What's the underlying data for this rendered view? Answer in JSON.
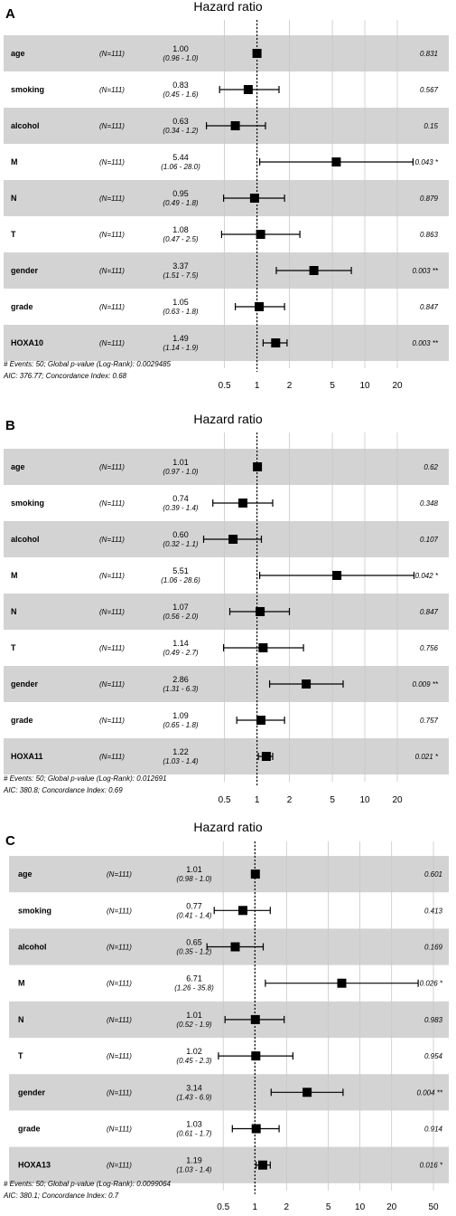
{
  "colors": {
    "band": "#d3d3d3",
    "grid": "#c8c8c8",
    "marker": "#000000",
    "text": "#000000"
  },
  "chart_data": [
    {
      "type": "forest",
      "panel_label": "A",
      "title": "Hazard ratio",
      "x_scale": "log",
      "reference_line": 1,
      "xlim": [
        0.37,
        35
      ],
      "ticks": [
        0.5,
        1,
        2,
        5,
        10,
        20
      ],
      "tick_labels": [
        "0.5",
        "1",
        "2",
        "5",
        "10",
        "20"
      ],
      "rows": [
        {
          "variable": "age",
          "n": "(N=111)",
          "hr_text": "1.00",
          "ci_text": "(0.96 - 1.0)",
          "hr": 1.0,
          "lo": 0.96,
          "hi": 1.0,
          "p_text": "0.831",
          "shaded": true
        },
        {
          "variable": "smoking",
          "n": "(N=111)",
          "hr_text": "0.83",
          "ci_text": "(0.45 - 1.6)",
          "hr": 0.83,
          "lo": 0.45,
          "hi": 1.6,
          "p_text": "0.567",
          "shaded": false
        },
        {
          "variable": "alcohol",
          "n": "(N=111)",
          "hr_text": "0.63",
          "ci_text": "(0.34 - 1.2)",
          "hr": 0.63,
          "lo": 0.34,
          "hi": 1.2,
          "p_text": "0.15",
          "shaded": true
        },
        {
          "variable": "M",
          "n": "(N=111)",
          "hr_text": "5.44",
          "ci_text": "(1.06 - 28.0)",
          "hr": 5.44,
          "lo": 1.06,
          "hi": 28.0,
          "p_text": "0.043 *",
          "shaded": false
        },
        {
          "variable": "N",
          "n": "(N=111)",
          "hr_text": "0.95",
          "ci_text": "(0.49 - 1.8)",
          "hr": 0.95,
          "lo": 0.49,
          "hi": 1.8,
          "p_text": "0.879",
          "shaded": true
        },
        {
          "variable": "T",
          "n": "(N=111)",
          "hr_text": "1.08",
          "ci_text": "(0.47 - 2.5)",
          "hr": 1.08,
          "lo": 0.47,
          "hi": 2.5,
          "p_text": "0.863",
          "shaded": false
        },
        {
          "variable": "gender",
          "n": "(N=111)",
          "hr_text": "3.37",
          "ci_text": "(1.51 - 7.5)",
          "hr": 3.37,
          "lo": 1.51,
          "hi": 7.5,
          "p_text": "0.003 **",
          "shaded": true
        },
        {
          "variable": "grade",
          "n": "(N=111)",
          "hr_text": "1.05",
          "ci_text": "(0.63 - 1.8)",
          "hr": 1.05,
          "lo": 0.63,
          "hi": 1.8,
          "p_text": "0.847",
          "shaded": false
        },
        {
          "variable": "HOXA10",
          "n": "(N=111)",
          "hr_text": "1.49",
          "ci_text": "(1.14 - 1.9)",
          "hr": 1.49,
          "lo": 1.14,
          "hi": 1.9,
          "p_text": "0.003 **",
          "shaded": true
        }
      ],
      "footnote_1": "# Events: 50; Global p-value (Log-Rank): 0.0029485",
      "footnote_2": "AIC: 376.77; Concordance Index: 0.68"
    },
    {
      "type": "forest",
      "panel_label": "B",
      "title": "Hazard ratio",
      "x_scale": "log",
      "reference_line": 1,
      "xlim": [
        0.37,
        35
      ],
      "ticks": [
        0.5,
        1,
        2,
        5,
        10,
        20
      ],
      "tick_labels": [
        "0.5",
        "1",
        "2",
        "5",
        "10",
        "20"
      ],
      "rows": [
        {
          "variable": "age",
          "n": "(N=111)",
          "hr_text": "1.01",
          "ci_text": "(0.97 - 1.0)",
          "hr": 1.01,
          "lo": 0.97,
          "hi": 1.0,
          "p_text": "0.62",
          "shaded": true
        },
        {
          "variable": "smoking",
          "n": "(N=111)",
          "hr_text": "0.74",
          "ci_text": "(0.39 - 1.4)",
          "hr": 0.74,
          "lo": 0.39,
          "hi": 1.4,
          "p_text": "0.348",
          "shaded": false
        },
        {
          "variable": "alcohol",
          "n": "(N=111)",
          "hr_text": "0.60",
          "ci_text": "(0.32 - 1.1)",
          "hr": 0.6,
          "lo": 0.32,
          "hi": 1.1,
          "p_text": "0.107",
          "shaded": true
        },
        {
          "variable": "M",
          "n": "(N=111)",
          "hr_text": "5.51",
          "ci_text": "(1.06 - 28.6)",
          "hr": 5.51,
          "lo": 1.06,
          "hi": 28.6,
          "p_text": "0.042 *",
          "shaded": false
        },
        {
          "variable": "N",
          "n": "(N=111)",
          "hr_text": "1.07",
          "ci_text": "(0.56 - 2.0)",
          "hr": 1.07,
          "lo": 0.56,
          "hi": 2.0,
          "p_text": "0.847",
          "shaded": true
        },
        {
          "variable": "T",
          "n": "(N=111)",
          "hr_text": "1.14",
          "ci_text": "(0.49 - 2.7)",
          "hr": 1.14,
          "lo": 0.49,
          "hi": 2.7,
          "p_text": "0.756",
          "shaded": false
        },
        {
          "variable": "gender",
          "n": "(N=111)",
          "hr_text": "2.86",
          "ci_text": "(1.31 - 6.3)",
          "hr": 2.86,
          "lo": 1.31,
          "hi": 6.3,
          "p_text": "0.009 **",
          "shaded": true
        },
        {
          "variable": "grade",
          "n": "(N=111)",
          "hr_text": "1.09",
          "ci_text": "(0.65 - 1.8)",
          "hr": 1.09,
          "lo": 0.65,
          "hi": 1.8,
          "p_text": "0.757",
          "shaded": false
        },
        {
          "variable": "HOXA11",
          "n": "(N=111)",
          "hr_text": "1.22",
          "ci_text": "(1.03 - 1.4)",
          "hr": 1.22,
          "lo": 1.03,
          "hi": 1.4,
          "p_text": "0.021 *",
          "shaded": true
        }
      ],
      "footnote_1": "# Events: 50; Global p-value (Log-Rank): 0.012691",
      "footnote_2": "AIC: 380.8; Concordance Index: 0.69"
    },
    {
      "type": "forest",
      "panel_label": "C",
      "title": "Hazard ratio",
      "x_scale": "log",
      "reference_line": 1,
      "xlim": [
        0.37,
        70
      ],
      "ticks": [
        0.5,
        1,
        2,
        5,
        10,
        20,
        50
      ],
      "tick_labels": [
        "0.5",
        "1",
        "2",
        "5",
        "10",
        "20",
        "50"
      ],
      "rows": [
        {
          "variable": "age",
          "n": "(N=111)",
          "hr_text": "1.01",
          "ci_text": "(0.98 - 1.0)",
          "hr": 1.01,
          "lo": 0.98,
          "hi": 1.0,
          "p_text": "0.601",
          "shaded": true
        },
        {
          "variable": "smoking",
          "n": "(N=111)",
          "hr_text": "0.77",
          "ci_text": "(0.41 - 1.4)",
          "hr": 0.77,
          "lo": 0.41,
          "hi": 1.4,
          "p_text": "0.413",
          "shaded": false
        },
        {
          "variable": "alcohol",
          "n": "(N=111)",
          "hr_text": "0.65",
          "ci_text": "(0.35 - 1.2)",
          "hr": 0.65,
          "lo": 0.35,
          "hi": 1.2,
          "p_text": "0.169",
          "shaded": true
        },
        {
          "variable": "M",
          "n": "(N=111)",
          "hr_text": "6.71",
          "ci_text": "(1.26 - 35.8)",
          "hr": 6.71,
          "lo": 1.26,
          "hi": 35.8,
          "p_text": "0.026 *",
          "shaded": false
        },
        {
          "variable": "N",
          "n": "(N=111)",
          "hr_text": "1.01",
          "ci_text": "(0.52 - 1.9)",
          "hr": 1.01,
          "lo": 0.52,
          "hi": 1.9,
          "p_text": "0.983",
          "shaded": true
        },
        {
          "variable": "T",
          "n": "(N=111)",
          "hr_text": "1.02",
          "ci_text": "(0.45 - 2.3)",
          "hr": 1.02,
          "lo": 0.45,
          "hi": 2.3,
          "p_text": "0.954",
          "shaded": false
        },
        {
          "variable": "gender",
          "n": "(N=111)",
          "hr_text": "3.14",
          "ci_text": "(1.43 - 6.9)",
          "hr": 3.14,
          "lo": 1.43,
          "hi": 6.9,
          "p_text": "0.004 **",
          "shaded": true
        },
        {
          "variable": "grade",
          "n": "(N=111)",
          "hr_text": "1.03",
          "ci_text": "(0.61 - 1.7)",
          "hr": 1.03,
          "lo": 0.61,
          "hi": 1.7,
          "p_text": "0.914",
          "shaded": false
        },
        {
          "variable": "HOXA13",
          "n": "(N=111)",
          "hr_text": "1.19",
          "ci_text": "(1.03 - 1.4)",
          "hr": 1.19,
          "lo": 1.03,
          "hi": 1.4,
          "p_text": "0.016 *",
          "shaded": true
        }
      ],
      "footnote_1": "# Events: 50; Global p-value (Log-Rank): 0.0099064",
      "footnote_2": "AIC: 380.1; Concordance Index: 0.7"
    }
  ]
}
